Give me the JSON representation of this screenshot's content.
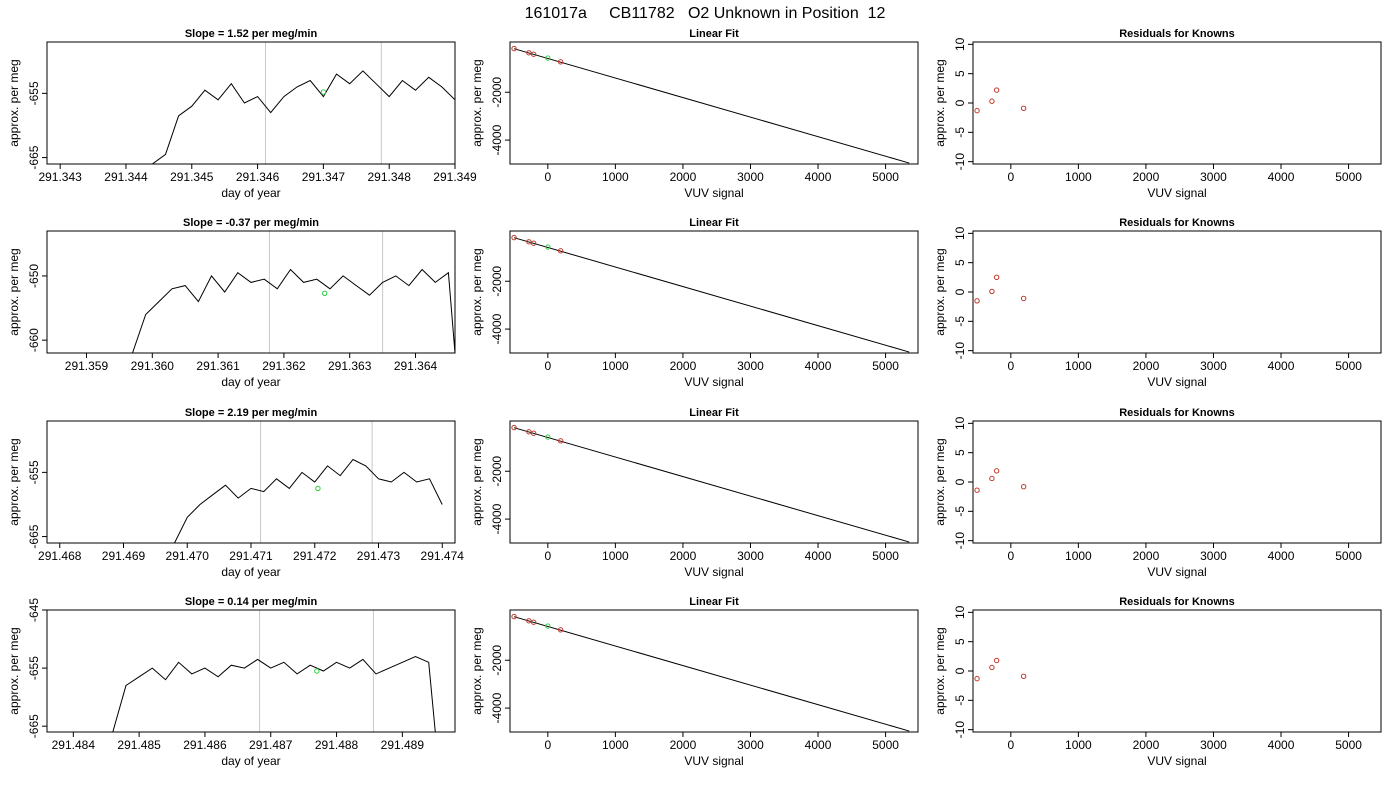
{
  "figure": {
    "title": "161017a     CB11782   O2 Unknown in Position  12"
  },
  "chart_data": [
    {
      "type": "line",
      "row": 0,
      "col": 0,
      "title": "Slope =  1.52  per meg/min",
      "xlabel": "day of year",
      "ylabel": "approx. per meg",
      "xlim": [
        291.3428,
        291.349
      ],
      "ylim": [
        -666,
        -647
      ],
      "xticks": [
        291.343,
        291.344,
        291.345,
        291.346,
        291.347,
        291.348,
        291.349
      ],
      "xtick_labels": [
        "291.343",
        "291.344",
        "291.345",
        "291.346",
        "291.347",
        "291.348",
        "291.349"
      ],
      "yticks": [
        -665,
        -655
      ],
      "ytick_labels": [
        "-665",
        "-655"
      ],
      "vlines": [
        291.34612,
        291.34788
      ],
      "series": [
        {
          "x": [
            291.3444,
            291.3446,
            291.3448,
            291.345,
            291.3452,
            291.3454,
            291.3456,
            291.3458,
            291.346,
            291.3462,
            291.3464,
            291.3466,
            291.3468,
            291.347,
            291.3472,
            291.3474,
            291.3476,
            291.3478,
            291.348,
            291.3482,
            291.3484,
            291.3486,
            291.3488,
            291.349
          ],
          "y": [
            -666,
            -664.5,
            -658.5,
            -657,
            -654.5,
            -656,
            -653.5,
            -656.5,
            -655.5,
            -658,
            -655.5,
            -654,
            -653,
            -655.5,
            -652,
            -653.5,
            -651.5,
            -653.5,
            -655.5,
            -653,
            -654.5,
            -652.5,
            -654,
            -656
          ]
        }
      ],
      "markers": [
        {
          "x": 291.347,
          "y": -654.8,
          "color": "#2ecc40"
        }
      ]
    },
    {
      "type": "line",
      "row": 1,
      "col": 0,
      "title": "Slope =  -0.37  per meg/min",
      "xlabel": "day of year",
      "ylabel": "approx. per meg",
      "xlim": [
        291.3584,
        291.3646
      ],
      "ylim": [
        -662,
        -643
      ],
      "xticks": [
        291.359,
        291.36,
        291.361,
        291.362,
        291.363,
        291.364
      ],
      "xtick_labels": [
        "291.359",
        "291.360",
        "291.361",
        "291.362",
        "291.363",
        "291.364"
      ],
      "yticks": [
        -660,
        -650
      ],
      "ytick_labels": [
        "-660",
        "-650"
      ],
      "vlines": [
        291.36178,
        291.3635
      ],
      "series": [
        {
          "x": [
            291.3597,
            291.3599,
            291.3601,
            291.3603,
            291.3605,
            291.3607,
            291.3609,
            291.3611,
            291.3613,
            291.3615,
            291.3617,
            291.3619,
            291.3621,
            291.3623,
            291.3625,
            291.3627,
            291.3629,
            291.3631,
            291.3633,
            291.3635,
            291.3637,
            291.3639,
            291.3641,
            291.3643,
            291.3645,
            291.3646
          ],
          "y": [
            -662,
            -656,
            -654,
            -652,
            -651.5,
            -654,
            -650,
            -652.5,
            -649.5,
            -651,
            -650.5,
            -652,
            -649,
            -651,
            -650.5,
            -652,
            -650,
            -651.5,
            -653,
            -651,
            -650,
            -651.5,
            -649,
            -651,
            -649.5,
            -662
          ]
        }
      ],
      "markers": [
        {
          "x": 291.36262,
          "y": -652.7,
          "color": "#2ecc40"
        }
      ]
    },
    {
      "type": "line",
      "row": 2,
      "col": 0,
      "title": "Slope =  2.19  per meg/min",
      "xlabel": "day of year",
      "ylabel": "approx. per meg",
      "xlim": [
        291.4678,
        291.4742
      ],
      "ylim": [
        -666,
        -647
      ],
      "xticks": [
        291.468,
        291.469,
        291.47,
        291.471,
        291.472,
        291.473,
        291.474
      ],
      "xtick_labels": [
        "291.468",
        "291.469",
        "291.470",
        "291.471",
        "291.472",
        "291.473",
        "291.474"
      ],
      "yticks": [
        -665,
        -655
      ],
      "ytick_labels": [
        "-665",
        "-655"
      ],
      "vlines": [
        291.47115,
        291.4729
      ],
      "series": [
        {
          "x": [
            291.4698,
            291.47,
            291.4702,
            291.4704,
            291.4706,
            291.4708,
            291.471,
            291.4712,
            291.4714,
            291.4716,
            291.4718,
            291.472,
            291.4722,
            291.4724,
            291.4726,
            291.4728,
            291.473,
            291.4732,
            291.4734,
            291.4736,
            291.4738,
            291.474
          ],
          "y": [
            -666,
            -662,
            -660,
            -658.5,
            -657,
            -659,
            -657.5,
            -658,
            -656,
            -657.5,
            -655,
            -656.5,
            -654,
            -655.5,
            -653,
            -654,
            -656,
            -656.5,
            -655,
            -656.5,
            -656,
            -660
          ]
        }
      ],
      "markers": [
        {
          "x": 291.47205,
          "y": -657.5,
          "color": "#2ecc40"
        }
      ]
    },
    {
      "type": "line",
      "row": 3,
      "col": 0,
      "title": "Slope =  0.14  per meg/min",
      "xlabel": "day of year",
      "ylabel": "approx. per meg",
      "xlim": [
        291.4836,
        291.4898
      ],
      "ylim": [
        -666,
        -645
      ],
      "xticks": [
        291.484,
        291.485,
        291.486,
        291.487,
        291.488,
        291.489
      ],
      "xtick_labels": [
        "291.484",
        "291.485",
        "291.486",
        "291.487",
        "291.488",
        "291.489"
      ],
      "yticks": [
        -665,
        -655,
        -645
      ],
      "ytick_labels": [
        "-665",
        "-655",
        "-645"
      ],
      "vlines": [
        291.48683,
        291.48856
      ],
      "series": [
        {
          "x": [
            291.4846,
            291.4848,
            291.485,
            291.4852,
            291.4854,
            291.4856,
            291.4858,
            291.486,
            291.4862,
            291.4864,
            291.4866,
            291.4868,
            291.487,
            291.4872,
            291.4874,
            291.4876,
            291.4878,
            291.488,
            291.4882,
            291.4884,
            291.4886,
            291.4888,
            291.489,
            291.4892,
            291.4894,
            291.4895
          ],
          "y": [
            -666,
            -658,
            -656.5,
            -655,
            -657,
            -654,
            -656,
            -655,
            -656.5,
            -654.5,
            -655,
            -653.5,
            -655,
            -654,
            -656,
            -654.5,
            -655.5,
            -654,
            -655,
            -653.5,
            -656,
            -655,
            -654,
            -653,
            -654,
            -666
          ]
        }
      ],
      "markers": [
        {
          "x": 291.4877,
          "y": -655.5,
          "color": "#2ecc40"
        }
      ]
    },
    {
      "type": "scatter",
      "row": 0,
      "col": 1,
      "title": "Linear Fit",
      "xlabel": "VUV signal",
      "ylabel": "approx. per meg",
      "xlim": [
        -560,
        5480
      ],
      "ylim": [
        -5000,
        100
      ],
      "xticks": [
        0,
        1000,
        2000,
        3000,
        4000,
        5000
      ],
      "xtick_labels": [
        "0",
        "1000",
        "2000",
        "3000",
        "4000",
        "5000"
      ],
      "yticks": [
        -4000,
        -2000
      ],
      "ytick_labels": [
        "-4000",
        "-2000"
      ],
      "fit_line": {
        "x": [
          -500,
          5350
        ],
        "y": [
          -180,
          -4960
        ]
      },
      "points": [
        {
          "x": -500,
          "y": -175,
          "color": "#c0392b"
        },
        {
          "x": -280,
          "y": -350,
          "color": "#c0392b"
        },
        {
          "x": -210,
          "y": -410,
          "color": "#c0392b"
        },
        {
          "x": 190,
          "y": -730,
          "color": "#c0392b"
        },
        {
          "x": 0,
          "y": -570,
          "color": "#2ecc40"
        }
      ]
    },
    {
      "type": "scatter",
      "row": 1,
      "col": 1,
      "title": "Linear Fit",
      "xlabel": "VUV signal",
      "ylabel": "approx. per meg",
      "xlim": [
        -560,
        5480
      ],
      "ylim": [
        -5000,
        100
      ],
      "xticks": [
        0,
        1000,
        2000,
        3000,
        4000,
        5000
      ],
      "xtick_labels": [
        "0",
        "1000",
        "2000",
        "3000",
        "4000",
        "5000"
      ],
      "yticks": [
        -4000,
        -2000
      ],
      "ytick_labels": [
        "-4000",
        "-2000"
      ],
      "fit_line": {
        "x": [
          -500,
          5350
        ],
        "y": [
          -180,
          -4960
        ]
      },
      "points": [
        {
          "x": -500,
          "y": -175,
          "color": "#c0392b"
        },
        {
          "x": -280,
          "y": -350,
          "color": "#c0392b"
        },
        {
          "x": -210,
          "y": -410,
          "color": "#c0392b"
        },
        {
          "x": 190,
          "y": -730,
          "color": "#c0392b"
        },
        {
          "x": 0,
          "y": -570,
          "color": "#2ecc40"
        }
      ]
    },
    {
      "type": "scatter",
      "row": 2,
      "col": 1,
      "title": "Linear Fit",
      "xlabel": "VUV signal",
      "ylabel": "approx. per meg",
      "xlim": [
        -560,
        5480
      ],
      "ylim": [
        -5000,
        100
      ],
      "xticks": [
        0,
        1000,
        2000,
        3000,
        4000,
        5000
      ],
      "xtick_labels": [
        "0",
        "1000",
        "2000",
        "3000",
        "4000",
        "5000"
      ],
      "yticks": [
        -4000,
        -2000
      ],
      "ytick_labels": [
        "-4000",
        "-2000"
      ],
      "fit_line": {
        "x": [
          -500,
          5350
        ],
        "y": [
          -180,
          -4960
        ]
      },
      "points": [
        {
          "x": -500,
          "y": -175,
          "color": "#c0392b"
        },
        {
          "x": -280,
          "y": -350,
          "color": "#c0392b"
        },
        {
          "x": -210,
          "y": -410,
          "color": "#c0392b"
        },
        {
          "x": 190,
          "y": -730,
          "color": "#c0392b"
        },
        {
          "x": 0,
          "y": -570,
          "color": "#2ecc40"
        }
      ]
    },
    {
      "type": "scatter",
      "row": 3,
      "col": 1,
      "title": "Linear Fit",
      "xlabel": "VUV signal",
      "ylabel": "approx. per meg",
      "xlim": [
        -560,
        5480
      ],
      "ylim": [
        -5000,
        100
      ],
      "xticks": [
        0,
        1000,
        2000,
        3000,
        4000,
        5000
      ],
      "xtick_labels": [
        "0",
        "1000",
        "2000",
        "3000",
        "4000",
        "5000"
      ],
      "yticks": [
        -4000,
        -2000
      ],
      "ytick_labels": [
        "-4000",
        "-2000"
      ],
      "fit_line": {
        "x": [
          -500,
          5350
        ],
        "y": [
          -180,
          -4960
        ]
      },
      "points": [
        {
          "x": -500,
          "y": -175,
          "color": "#c0392b"
        },
        {
          "x": -280,
          "y": -350,
          "color": "#c0392b"
        },
        {
          "x": -210,
          "y": -410,
          "color": "#c0392b"
        },
        {
          "x": 190,
          "y": -730,
          "color": "#c0392b"
        },
        {
          "x": 0,
          "y": -570,
          "color": "#2ecc40"
        }
      ]
    },
    {
      "type": "scatter",
      "row": 0,
      "col": 2,
      "title": "Residuals for Knowns",
      "xlabel": "VUV signal",
      "ylabel": "approx. per meg",
      "xlim": [
        -560,
        5480
      ],
      "ylim": [
        -10.4,
        10.4
      ],
      "xticks": [
        0,
        1000,
        2000,
        3000,
        4000,
        5000
      ],
      "xtick_labels": [
        "0",
        "1000",
        "2000",
        "3000",
        "4000",
        "5000"
      ],
      "yticks": [
        -10,
        -5,
        0,
        5,
        10
      ],
      "ytick_labels": [
        "-10",
        "-5",
        "0",
        "5",
        "10"
      ],
      "points": [
        {
          "x": -500,
          "y": -1.3,
          "color": "#c0392b"
        },
        {
          "x": -280,
          "y": 0.3,
          "color": "#c0392b"
        },
        {
          "x": -210,
          "y": 2.2,
          "color": "#c0392b"
        },
        {
          "x": 190,
          "y": -0.9,
          "color": "#c0392b"
        }
      ]
    },
    {
      "type": "scatter",
      "row": 1,
      "col": 2,
      "title": "Residuals for Knowns",
      "xlabel": "VUV signal",
      "ylabel": "approx. per meg",
      "xlim": [
        -560,
        5480
      ],
      "ylim": [
        -10.4,
        10.4
      ],
      "xticks": [
        0,
        1000,
        2000,
        3000,
        4000,
        5000
      ],
      "xtick_labels": [
        "0",
        "1000",
        "2000",
        "3000",
        "4000",
        "5000"
      ],
      "yticks": [
        -10,
        -5,
        0,
        5,
        10
      ],
      "ytick_labels": [
        "-10",
        "-5",
        "0",
        "5",
        "10"
      ],
      "points": [
        {
          "x": -500,
          "y": -1.5,
          "color": "#c0392b"
        },
        {
          "x": -280,
          "y": 0.1,
          "color": "#c0392b"
        },
        {
          "x": -210,
          "y": 2.5,
          "color": "#c0392b"
        },
        {
          "x": 190,
          "y": -1.1,
          "color": "#c0392b"
        }
      ]
    },
    {
      "type": "scatter",
      "row": 2,
      "col": 2,
      "title": "Residuals for Knowns",
      "xlabel": "VUV signal",
      "ylabel": "approx. per meg",
      "xlim": [
        -560,
        5480
      ],
      "ylim": [
        -10.4,
        10.4
      ],
      "xticks": [
        0,
        1000,
        2000,
        3000,
        4000,
        5000
      ],
      "xtick_labels": [
        "0",
        "1000",
        "2000",
        "3000",
        "4000",
        "5000"
      ],
      "yticks": [
        -10,
        -5,
        0,
        5,
        10
      ],
      "ytick_labels": [
        "-10",
        "-5",
        "0",
        "5",
        "10"
      ],
      "points": [
        {
          "x": -500,
          "y": -1.4,
          "color": "#c0392b"
        },
        {
          "x": -280,
          "y": 0.6,
          "color": "#c0392b"
        },
        {
          "x": -210,
          "y": 1.9,
          "color": "#c0392b"
        },
        {
          "x": 190,
          "y": -0.8,
          "color": "#c0392b"
        }
      ]
    },
    {
      "type": "scatter",
      "row": 3,
      "col": 2,
      "title": "Residuals for Knowns",
      "xlabel": "VUV signal",
      "ylabel": "approx. per meg",
      "xlim": [
        -560,
        5480
      ],
      "ylim": [
        -10.4,
        10.4
      ],
      "xticks": [
        0,
        1000,
        2000,
        3000,
        4000,
        5000
      ],
      "xtick_labels": [
        "0",
        "1000",
        "2000",
        "3000",
        "4000",
        "5000"
      ],
      "yticks": [
        -10,
        -5,
        0,
        5,
        10
      ],
      "ytick_labels": [
        "-10",
        "-5",
        "0",
        "5",
        "10"
      ],
      "points": [
        {
          "x": -500,
          "y": -1.3,
          "color": "#c0392b"
        },
        {
          "x": -280,
          "y": 0.6,
          "color": "#c0392b"
        },
        {
          "x": -210,
          "y": 1.8,
          "color": "#c0392b"
        },
        {
          "x": 190,
          "y": -0.9,
          "color": "#c0392b"
        }
      ]
    }
  ]
}
